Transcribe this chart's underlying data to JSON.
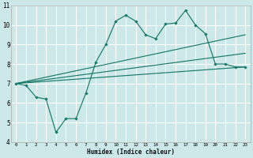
{
  "xlabel": "Humidex (Indice chaleur)",
  "bg_color": "#cce8e8",
  "grid_color": "#ffffff",
  "line_color": "#1a7a6a",
  "xlim": [
    -0.5,
    23.5
  ],
  "ylim": [
    4,
    11
  ],
  "xticks": [
    0,
    1,
    2,
    3,
    4,
    5,
    6,
    7,
    8,
    9,
    10,
    11,
    12,
    13,
    14,
    15,
    16,
    17,
    18,
    19,
    20,
    21,
    22,
    23
  ],
  "yticks": [
    4,
    5,
    6,
    7,
    8,
    9,
    10,
    11
  ],
  "line1_x": [
    0,
    1,
    2,
    3,
    4,
    5,
    6,
    7,
    8,
    9,
    10,
    11,
    12,
    13,
    14,
    15,
    16,
    17,
    18,
    19,
    20,
    21,
    22,
    23
  ],
  "line1_y": [
    7.0,
    6.9,
    6.3,
    6.2,
    4.5,
    5.2,
    5.2,
    6.5,
    8.1,
    9.0,
    10.2,
    10.5,
    10.2,
    9.5,
    9.3,
    10.05,
    10.1,
    10.75,
    10.0,
    9.55,
    8.0,
    8.0,
    7.85,
    7.85
  ],
  "line2_x": [
    0,
    23
  ],
  "line2_y": [
    7.0,
    9.5
  ],
  "line3_x": [
    0,
    23
  ],
  "line3_y": [
    7.0,
    7.85
  ],
  "line4_x": [
    0,
    23
  ],
  "line4_y": [
    7.0,
    8.55
  ]
}
